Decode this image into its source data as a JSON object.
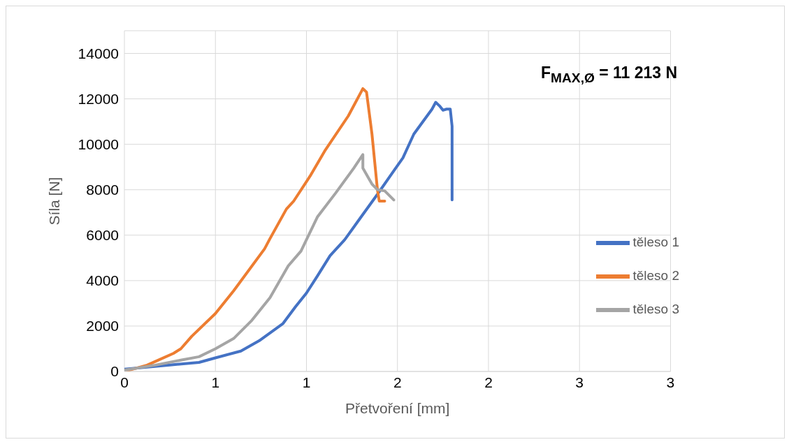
{
  "chart_data": {
    "type": "line",
    "xlabel": "Přetvoření [mm]",
    "ylabel": "Síla [N]",
    "xlim": [
      0,
      3
    ],
    "xticks": [
      0,
      {
        "value": 0.5,
        "label": "1"
      },
      {
        "value": 1,
        "label": "1"
      },
      {
        "value": 1.5,
        "label": "2"
      },
      {
        "value": 2,
        "label": "2"
      },
      {
        "value": 2.5,
        "label": "3"
      },
      {
        "value": 3,
        "label": "3"
      }
    ],
    "ylim": [
      0,
      15000
    ],
    "yticks": [
      0,
      2000,
      4000,
      6000,
      8000,
      10000,
      12000,
      14000
    ],
    "grid": true,
    "legend": "right",
    "marker": "none",
    "line_style": "solid",
    "annotations": [
      "F$_{MAX,Ø}$ = 11 213 N"
    ],
    "series": [
      {
        "name": "těleso 1",
        "color": "#4472c4",
        "x": [
          0,
          0.24,
          0.41,
          0.5,
          0.64,
          0.74,
          0.87,
          0.94,
          1.0,
          1.06,
          1.13,
          1.21,
          1.3,
          1.39,
          1.49,
          1.53,
          1.59,
          1.69,
          1.71,
          1.73,
          1.75,
          1.77,
          1.79,
          1.8,
          1.8
        ],
        "values": [
          100,
          280,
          400,
          600,
          900,
          1350,
          2100,
          2850,
          3450,
          4200,
          5100,
          5800,
          6800,
          7800,
          8950,
          9400,
          10450,
          11550,
          11850,
          11700,
          11500,
          11550,
          11550,
          10800,
          7550
        ]
      },
      {
        "name": "těleso 2",
        "color": "#ed7d31",
        "x": [
          0,
          0.125,
          0.27,
          0.31,
          0.37,
          0.5,
          0.6,
          0.77,
          0.8,
          0.89,
          0.93,
          1.02,
          1.1,
          1.23,
          1.3,
          1.31,
          1.33,
          1.36,
          1.39,
          1.4,
          1.43
        ],
        "values": [
          0,
          280,
          800,
          1000,
          1550,
          2550,
          3550,
          5400,
          5850,
          7150,
          7500,
          8600,
          9700,
          11250,
          12300,
          12450,
          12300,
          10450,
          8000,
          7500,
          7500
        ]
      },
      {
        "name": "těleso 3",
        "color": "#a5a5a5",
        "x": [
          0,
          0.17,
          0.31,
          0.41,
          0.5,
          0.6,
          0.7,
          0.8,
          0.9,
          0.97,
          1.06,
          1.16,
          1.26,
          1.31,
          1.31,
          1.36,
          1.39,
          1.43,
          1.48
        ],
        "values": [
          60,
          280,
          500,
          650,
          1000,
          1450,
          2250,
          3250,
          4650,
          5300,
          6800,
          7850,
          8950,
          9550,
          8950,
          8250,
          8000,
          7950,
          7550
        ]
      }
    ]
  }
}
